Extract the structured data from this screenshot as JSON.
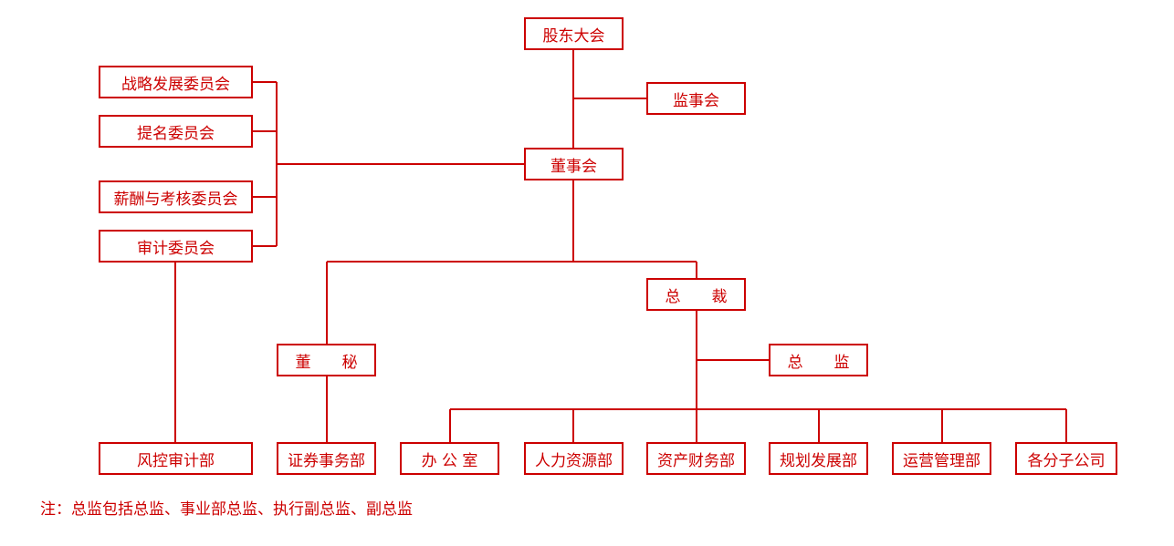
{
  "colors": {
    "accent": "#cc0000"
  },
  "nodes": {
    "shareholders": "股东大会",
    "supervisory": "监事会",
    "board": "董事会",
    "strategy": "战略发展委员会",
    "nomination": "提名委员会",
    "compensation": "薪酬与考核委员会",
    "audit_committee": "审计委员会",
    "president": "总　　裁",
    "board_secretary": "董　　秘",
    "director": "总　　监",
    "risk_audit": "风控审计部",
    "securities": "证券事务部",
    "office": "办 公 室",
    "hr": "人力资源部",
    "finance": "资产财务部",
    "planning": "规划发展部",
    "operations": "运营管理部",
    "subsidiaries": "各分子公司"
  },
  "note": "注：总监包括总监、事业部总监、执行副总监、副总监"
}
